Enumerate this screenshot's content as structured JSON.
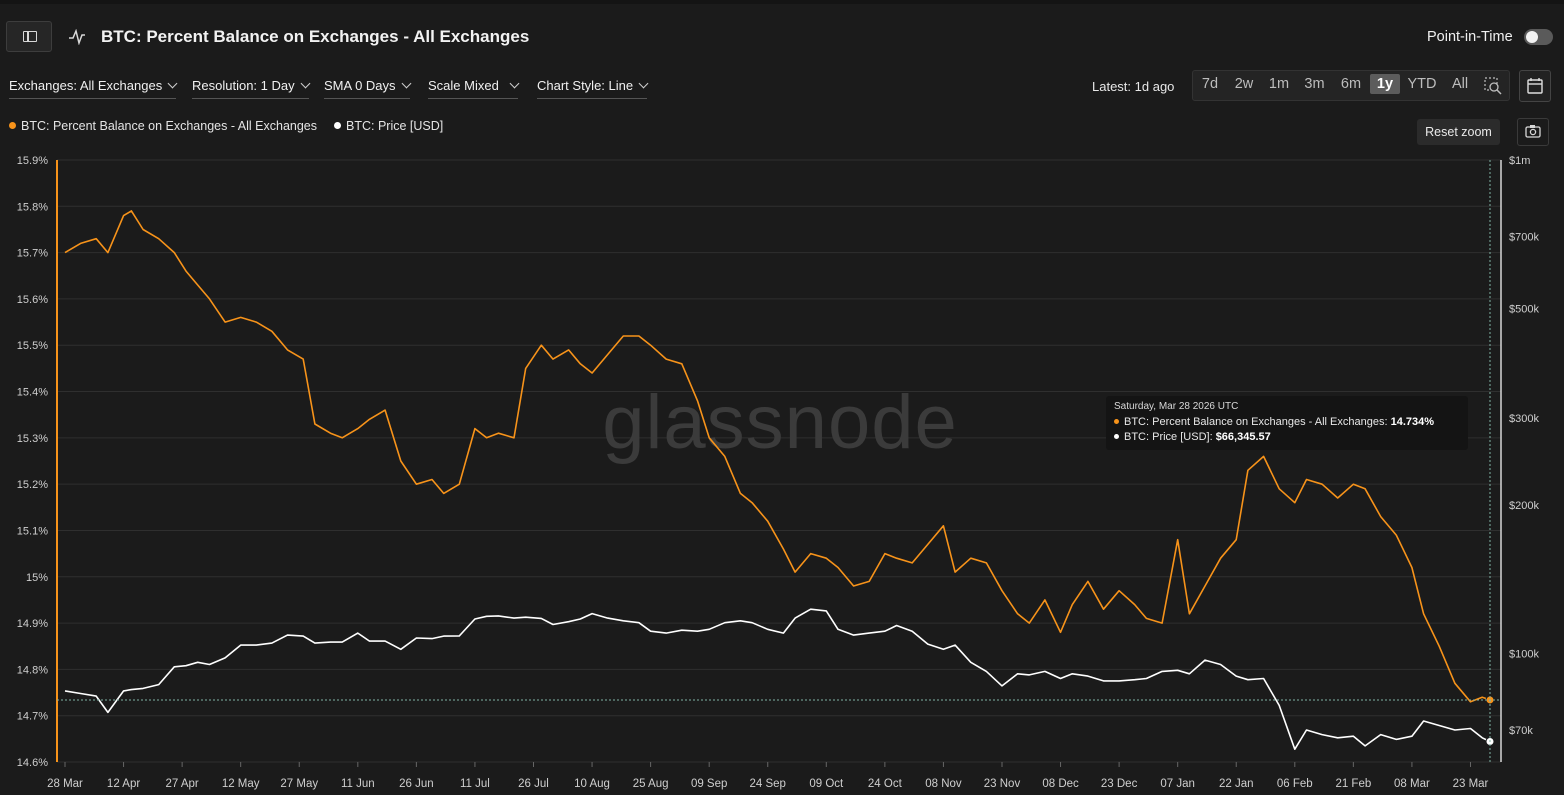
{
  "header": {
    "title": "BTC: Percent Balance on Exchanges - All Exchanges",
    "point_in_time_label": "Point-in-Time"
  },
  "controls": {
    "exchanges": "Exchanges: All Exchanges",
    "resolution": "Resolution: 1 Day",
    "sma": "SMA 0 Days",
    "scale": "Scale Mixed",
    "chart_style": "Chart Style: Line",
    "latest": "Latest: 1d ago",
    "ranges": [
      "7d",
      "2w",
      "1m",
      "3m",
      "6m",
      "1y",
      "YTD",
      "All"
    ],
    "active_range": "1y",
    "reset_zoom": "Reset zoom"
  },
  "legend": {
    "series1": "BTC: Percent Balance on Exchanges - All Exchanges",
    "series2": "BTC: Price [USD]"
  },
  "tooltip": {
    "date": "Saturday, Mar 28 2026 UTC",
    "series1_label": "BTC: Percent Balance on Exchanges - All Exchanges:",
    "series1_value": "14.734%",
    "series2_label": "BTC: Price [USD]:",
    "series2_value": "$66,345.57"
  },
  "watermark": "glassnode",
  "colors": {
    "series1": "#f7931a",
    "series2": "#ffffff",
    "background": "#1b1b1b"
  },
  "chart_data": {
    "type": "line",
    "x_ticks": [
      "28 Mar",
      "12 Apr",
      "27 Apr",
      "12 May",
      "27 May",
      "11 Jun",
      "26 Jun",
      "11 Jul",
      "26 Jul",
      "10 Aug",
      "25 Aug",
      "09 Sep",
      "24 Sep",
      "09 Oct",
      "24 Oct",
      "08 Nov",
      "23 Nov",
      "08 Dec",
      "23 Dec",
      "07 Jan",
      "22 Jan",
      "06 Feb",
      "21 Feb",
      "08 Mar",
      "23 Mar"
    ],
    "y_left_ticks": [
      "15.9%",
      "15.8%",
      "15.7%",
      "15.6%",
      "15.5%",
      "15.4%",
      "15.3%",
      "15.2%",
      "15.1%",
      "15%",
      "14.9%",
      "14.8%",
      "14.7%",
      "14.6%"
    ],
    "y_left_range": [
      14.6,
      15.9
    ],
    "y_right_ticks": [
      "$1m",
      "$700k",
      "$500k",
      "$300k",
      "$200k",
      "$100k",
      "$70k"
    ],
    "y_right_values": [
      1000000,
      700000,
      500000,
      300000,
      200000,
      100000,
      70000
    ],
    "y_right_scale": "log",
    "grid": true,
    "series": [
      {
        "name": "BTC: Percent Balance on Exchanges - All Exchanges",
        "axis": "left",
        "x": [
          "2025-03-28",
          "2025-04-01",
          "2025-04-05",
          "2025-04-08",
          "2025-04-12",
          "2025-04-14",
          "2025-04-17",
          "2025-04-21",
          "2025-04-25",
          "2025-04-28",
          "2025-05-01",
          "2025-05-04",
          "2025-05-08",
          "2025-05-12",
          "2025-05-16",
          "2025-05-20",
          "2025-05-24",
          "2025-05-28",
          "2025-05-31",
          "2025-06-04",
          "2025-06-07",
          "2025-06-11",
          "2025-06-14",
          "2025-06-18",
          "2025-06-22",
          "2025-06-26",
          "2025-06-30",
          "2025-07-03",
          "2025-07-07",
          "2025-07-11",
          "2025-07-14",
          "2025-07-17",
          "2025-07-21",
          "2025-07-24",
          "2025-07-28",
          "2025-07-31",
          "2025-08-04",
          "2025-08-07",
          "2025-08-10",
          "2025-08-14",
          "2025-08-18",
          "2025-08-22",
          "2025-08-25",
          "2025-08-29",
          "2025-09-02",
          "2025-09-06",
          "2025-09-09",
          "2025-09-13",
          "2025-09-17",
          "2025-09-20",
          "2025-09-24",
          "2025-09-28",
          "2025-10-01",
          "2025-10-05",
          "2025-10-09",
          "2025-10-12",
          "2025-10-16",
          "2025-10-20",
          "2025-10-24",
          "2025-10-27",
          "2025-10-31",
          "2025-11-04",
          "2025-11-08",
          "2025-11-11",
          "2025-11-15",
          "2025-11-19",
          "2025-11-23",
          "2025-11-27",
          "2025-11-30",
          "2025-12-04",
          "2025-12-08",
          "2025-12-11",
          "2025-12-15",
          "2025-12-19",
          "2025-12-23",
          "2025-12-27",
          "2025-12-30",
          "2026-01-03",
          "2026-01-07",
          "2026-01-10",
          "2026-01-14",
          "2026-01-18",
          "2026-01-22",
          "2026-01-25",
          "2026-01-29",
          "2026-02-02",
          "2026-02-06",
          "2026-02-09",
          "2026-02-13",
          "2026-02-17",
          "2026-02-21",
          "2026-02-24",
          "2026-02-28",
          "2026-03-04",
          "2026-03-08",
          "2026-03-11",
          "2026-03-15",
          "2026-03-19",
          "2026-03-23",
          "2026-03-26",
          "2026-03-28"
        ],
        "values": [
          15.7,
          15.72,
          15.73,
          15.7,
          15.78,
          15.79,
          15.75,
          15.73,
          15.7,
          15.66,
          15.63,
          15.6,
          15.55,
          15.56,
          15.55,
          15.53,
          15.49,
          15.47,
          15.33,
          15.31,
          15.3,
          15.32,
          15.34,
          15.36,
          15.25,
          15.2,
          15.21,
          15.18,
          15.2,
          15.32,
          15.3,
          15.31,
          15.3,
          15.45,
          15.5,
          15.47,
          15.49,
          15.46,
          15.44,
          15.48,
          15.52,
          15.52,
          15.5,
          15.47,
          15.46,
          15.38,
          15.3,
          15.26,
          15.18,
          15.16,
          15.12,
          15.06,
          15.01,
          15.05,
          15.04,
          15.02,
          14.98,
          14.99,
          15.05,
          15.04,
          15.03,
          15.07,
          15.11,
          15.01,
          15.04,
          15.03,
          14.97,
          14.92,
          14.9,
          14.95,
          14.88,
          14.94,
          14.99,
          14.93,
          14.97,
          14.94,
          14.91,
          14.9,
          15.08,
          14.92,
          14.98,
          15.04,
          15.08,
          15.23,
          15.26,
          15.19,
          15.16,
          15.21,
          15.2,
          15.17,
          15.2,
          15.19,
          15.13,
          15.09,
          15.02,
          14.92,
          14.85,
          14.77,
          14.73,
          14.74,
          14.734
        ]
      },
      {
        "name": "BTC: Price [USD]",
        "axis": "right",
        "x": [
          "2025-03-28",
          "2025-04-01",
          "2025-04-05",
          "2025-04-08",
          "2025-04-12",
          "2025-04-14",
          "2025-04-17",
          "2025-04-21",
          "2025-04-25",
          "2025-04-28",
          "2025-05-01",
          "2025-05-04",
          "2025-05-08",
          "2025-05-12",
          "2025-05-16",
          "2025-05-20",
          "2025-05-24",
          "2025-05-28",
          "2025-05-31",
          "2025-06-04",
          "2025-06-07",
          "2025-06-11",
          "2025-06-14",
          "2025-06-18",
          "2025-06-22",
          "2025-06-26",
          "2025-06-30",
          "2025-07-03",
          "2025-07-07",
          "2025-07-11",
          "2025-07-14",
          "2025-07-17",
          "2025-07-21",
          "2025-07-24",
          "2025-07-28",
          "2025-07-31",
          "2025-08-04",
          "2025-08-07",
          "2025-08-10",
          "2025-08-14",
          "2025-08-18",
          "2025-08-22",
          "2025-08-25",
          "2025-08-29",
          "2025-09-02",
          "2025-09-06",
          "2025-09-09",
          "2025-09-13",
          "2025-09-17",
          "2025-09-20",
          "2025-09-24",
          "2025-09-28",
          "2025-10-01",
          "2025-10-05",
          "2025-10-09",
          "2025-10-12",
          "2025-10-16",
          "2025-10-20",
          "2025-10-24",
          "2025-10-27",
          "2025-10-31",
          "2025-11-04",
          "2025-11-08",
          "2025-11-11",
          "2025-11-15",
          "2025-11-19",
          "2025-11-23",
          "2025-11-27",
          "2025-11-30",
          "2025-12-04",
          "2025-12-08",
          "2025-12-11",
          "2025-12-15",
          "2025-12-19",
          "2025-12-23",
          "2025-12-27",
          "2025-12-30",
          "2026-01-03",
          "2026-01-07",
          "2026-01-10",
          "2026-01-14",
          "2026-01-18",
          "2026-01-22",
          "2026-01-25",
          "2026-01-29",
          "2026-02-02",
          "2026-02-06",
          "2026-02-09",
          "2026-02-13",
          "2026-02-17",
          "2026-02-21",
          "2026-02-24",
          "2026-02-28",
          "2026-03-04",
          "2026-03-08",
          "2026-03-11",
          "2026-03-15",
          "2026-03-19",
          "2026-03-23",
          "2026-03-26",
          "2026-03-28"
        ],
        "values": [
          84000,
          83000,
          82000,
          76000,
          84000,
          84500,
          85000,
          86500,
          94000,
          94500,
          96000,
          95000,
          98000,
          104000,
          104000,
          105000,
          109000,
          108500,
          105000,
          105500,
          105500,
          110000,
          106000,
          106000,
          102000,
          107500,
          107200,
          108500,
          108600,
          117500,
          119000,
          119200,
          118000,
          118500,
          117800,
          114500,
          116000,
          117500,
          120500,
          118000,
          116500,
          115500,
          111000,
          110000,
          111500,
          111000,
          112000,
          115500,
          116500,
          115500,
          112000,
          110000,
          118000,
          123000,
          122000,
          112000,
          109000,
          110000,
          111000,
          114000,
          111000,
          104500,
          102000,
          104000,
          96000,
          92000,
          86000,
          91000,
          90500,
          92000,
          89000,
          91000,
          90000,
          88000,
          88000,
          88500,
          89000,
          92000,
          92500,
          91000,
          97000,
          95000,
          90000,
          88500,
          89000,
          78500,
          64000,
          70000,
          68500,
          67500,
          68000,
          65000,
          68500,
          67000,
          68000,
          73000,
          71500,
          70000,
          70500,
          67500,
          66345.57
        ]
      }
    ]
  }
}
